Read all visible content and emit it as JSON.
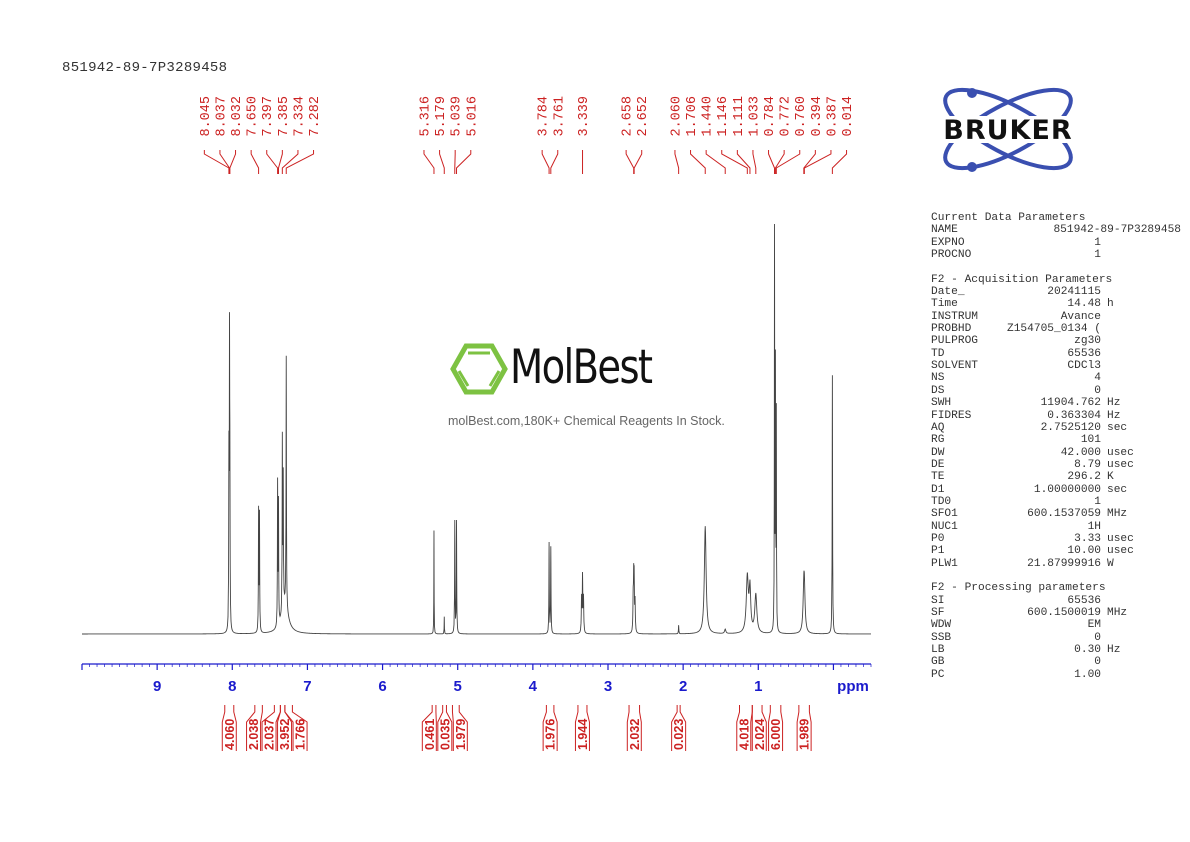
{
  "sample_title": "851942-89-7P3289458",
  "logo": {
    "brand": "BRUKER",
    "color": "#3a4fb0"
  },
  "watermark": {
    "name": "MolBest",
    "tagline": "molBest.com,180K+ Chemical Reagents In Stock.",
    "accent": "#7dc242"
  },
  "chart_data": {
    "type": "line",
    "title": "",
    "xlabel": "ppm",
    "xlim": [
      10.0,
      -0.5
    ],
    "x_ticks": [
      9,
      8,
      7,
      6,
      5,
      4,
      3,
      2,
      1
    ],
    "x_axis_reversed": true,
    "grid": false,
    "line_color": "#444444",
    "label_color": "#cc2222",
    "axis_color": "#1a1acc",
    "peak_labels": [
      "8.045",
      "8.037",
      "8.032",
      "7.650",
      "7.397",
      "7.385",
      "7.334",
      "7.282",
      "5.316",
      "5.179",
      "5.039",
      "5.016",
      "3.784",
      "3.761",
      "3.339",
      "2.658",
      "2.652",
      "2.060",
      "1.706",
      "1.440",
      "1.146",
      "1.111",
      "1.033",
      "0.784",
      "0.772",
      "0.760",
      "0.394",
      "0.387",
      "0.014"
    ],
    "peaks": [
      {
        "ppm": 8.045,
        "intensity": 38,
        "width": 0.003
      },
      {
        "ppm": 8.037,
        "intensity": 62,
        "width": 0.003
      },
      {
        "ppm": 8.032,
        "intensity": 30,
        "width": 0.003
      },
      {
        "ppm": 7.65,
        "intensity": 28,
        "width": 0.003
      },
      {
        "ppm": 7.638,
        "intensity": 27,
        "width": 0.003
      },
      {
        "ppm": 7.397,
        "intensity": 33,
        "width": 0.003
      },
      {
        "ppm": 7.385,
        "intensity": 28,
        "width": 0.003
      },
      {
        "ppm": 7.334,
        "intensity": 40,
        "width": 0.003
      },
      {
        "ppm": 7.322,
        "intensity": 30,
        "width": 0.003
      },
      {
        "ppm": 7.282,
        "intensity": 58,
        "width": 0.003
      },
      {
        "ppm": 7.3,
        "intensity": 7,
        "width": 0.05
      },
      {
        "ppm": 5.316,
        "intensity": 24,
        "width": 0.002
      },
      {
        "ppm": 5.179,
        "intensity": 4,
        "width": 0.002
      },
      {
        "ppm": 5.039,
        "intensity": 26,
        "width": 0.003
      },
      {
        "ppm": 5.016,
        "intensity": 26,
        "width": 0.003
      },
      {
        "ppm": 3.784,
        "intensity": 21,
        "width": 0.003
      },
      {
        "ppm": 3.761,
        "intensity": 20,
        "width": 0.003
      },
      {
        "ppm": 3.352,
        "intensity": 8,
        "width": 0.004
      },
      {
        "ppm": 3.339,
        "intensity": 13,
        "width": 0.004
      },
      {
        "ppm": 3.326,
        "intensity": 8,
        "width": 0.004
      },
      {
        "ppm": 2.665,
        "intensity": 7,
        "width": 0.004
      },
      {
        "ppm": 2.658,
        "intensity": 11,
        "width": 0.004
      },
      {
        "ppm": 2.652,
        "intensity": 11,
        "width": 0.004
      },
      {
        "ppm": 2.64,
        "intensity": 7,
        "width": 0.004
      },
      {
        "ppm": 2.06,
        "intensity": 2,
        "width": 0.003
      },
      {
        "ppm": 1.706,
        "intensity": 25,
        "width": 0.014
      },
      {
        "ppm": 1.44,
        "intensity": 1,
        "width": 0.01
      },
      {
        "ppm": 1.146,
        "intensity": 13,
        "width": 0.016
      },
      {
        "ppm": 1.111,
        "intensity": 10,
        "width": 0.012
      },
      {
        "ppm": 1.033,
        "intensity": 9,
        "width": 0.016
      },
      {
        "ppm": 0.784,
        "intensity": 92,
        "width": 0.0025
      },
      {
        "ppm": 0.772,
        "intensity": 60,
        "width": 0.0025
      },
      {
        "ppm": 0.76,
        "intensity": 50,
        "width": 0.0025
      },
      {
        "ppm": 0.394,
        "intensity": 8,
        "width": 0.012
      },
      {
        "ppm": 0.387,
        "intensity": 8,
        "width": 0.012
      },
      {
        "ppm": 0.014,
        "intensity": 60,
        "width": 0.003
      }
    ],
    "integrals": [
      {
        "value": "4.060",
        "range": [
          8.1,
          7.98
        ]
      },
      {
        "value": "2.038",
        "range": [
          7.7,
          7.6
        ]
      },
      {
        "value": "2.037",
        "range": [
          7.44,
          7.36
        ]
      },
      {
        "value": "3.952",
        "range": [
          7.36,
          7.3
        ]
      },
      {
        "value": "1.766",
        "range": [
          7.3,
          7.2
        ]
      },
      {
        "value": "0.461",
        "range": [
          5.34,
          5.29
        ]
      },
      {
        "value": "0.035",
        "range": [
          5.2,
          5.15
        ]
      },
      {
        "value": "1.979",
        "range": [
          5.07,
          4.98
        ]
      },
      {
        "value": "1.976",
        "range": [
          3.82,
          3.72
        ]
      },
      {
        "value": "1.944",
        "range": [
          3.4,
          3.28
        ]
      },
      {
        "value": "2.032",
        "range": [
          2.72,
          2.58
        ]
      },
      {
        "value": "0.023",
        "range": [
          2.08,
          2.04
        ]
      },
      {
        "value": "4.018",
        "range": [
          1.25,
          1.08
        ]
      },
      {
        "value": "2.024",
        "range": [
          1.08,
          0.95
        ]
      },
      {
        "value": "6.000",
        "range": [
          0.84,
          0.7
        ]
      },
      {
        "value": "1.989",
        "range": [
          0.46,
          0.32
        ]
      }
    ]
  },
  "parameters": [
    {
      "title": "Current Data Parameters",
      "rows": [
        [
          "NAME",
          "851942-89-7P3289458",
          ""
        ],
        [
          "EXPNO",
          "1",
          ""
        ],
        [
          "PROCNO",
          "1",
          ""
        ]
      ]
    },
    {
      "title": "F2 - Acquisition Parameters",
      "rows": [
        [
          "Date_",
          "20241115",
          ""
        ],
        [
          "Time",
          "14.48",
          "h"
        ],
        [
          "INSTRUM",
          "Avance",
          ""
        ],
        [
          "PROBHD",
          "Z154705_0134 (",
          ""
        ],
        [
          "PULPROG",
          "zg30",
          ""
        ],
        [
          "TD",
          "65536",
          ""
        ],
        [
          "SOLVENT",
          "CDCl3",
          ""
        ],
        [
          "NS",
          "4",
          ""
        ],
        [
          "DS",
          "0",
          ""
        ],
        [
          "SWH",
          "11904.762",
          "Hz"
        ],
        [
          "FIDRES",
          "0.363304",
          "Hz"
        ],
        [
          "AQ",
          "2.7525120",
          "sec"
        ],
        [
          "RG",
          "101",
          ""
        ],
        [
          "DW",
          "42.000",
          "usec"
        ],
        [
          "DE",
          "8.79",
          "usec"
        ],
        [
          "TE",
          "296.2",
          "K"
        ],
        [
          "D1",
          "1.00000000",
          "sec"
        ],
        [
          "TD0",
          "1",
          ""
        ],
        [
          "SFO1",
          "600.1537059",
          "MHz"
        ],
        [
          "NUC1",
          "1H",
          ""
        ],
        [
          "P0",
          "3.33",
          "usec"
        ],
        [
          "P1",
          "10.00",
          "usec"
        ],
        [
          "PLW1",
          "21.87999916",
          "W"
        ]
      ]
    },
    {
      "title": "F2 - Processing parameters",
      "rows": [
        [
          "SI",
          "65536",
          ""
        ],
        [
          "SF",
          "600.1500019",
          "MHz"
        ],
        [
          "WDW",
          "EM",
          ""
        ],
        [
          "SSB",
          "0",
          ""
        ],
        [
          "LB",
          "0.30",
          "Hz"
        ],
        [
          "GB",
          "0",
          ""
        ],
        [
          "PC",
          "1.00",
          ""
        ]
      ]
    }
  ]
}
